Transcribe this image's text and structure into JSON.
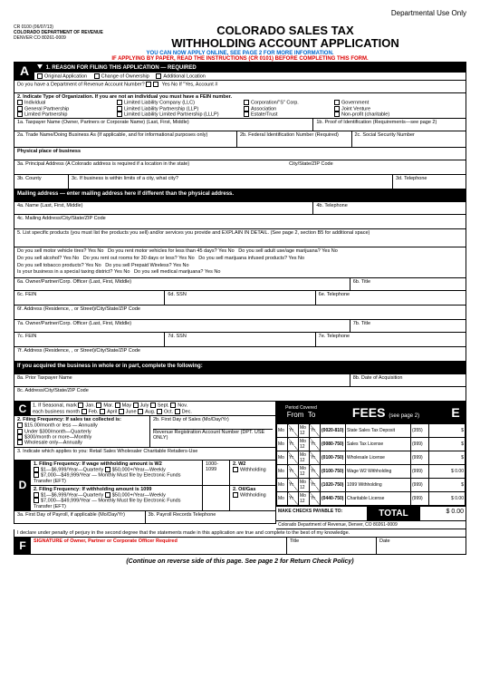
{
  "dept_use": "Departmental Use Only",
  "form_id": "CR 0100 (06/07/13)",
  "agency": "COLORADO DEPARTMENT OF REVENUE",
  "agency_addr": "DENVER CO 80261-0009",
  "title1": "COLORADO SALES TAX",
  "title2": "WITHHOLDING ACCOUNT APPLICATION",
  "instr1": "YOU CAN NOW APPLY ONLINE, SEE PAGE 2 FOR MORE INFORMATION.",
  "instr2": "IF APPLYING BY PAPER, READ THE INSTRUCTIONS (CR 0101) BEFORE COMPLETING THIS FORM.",
  "A": {
    "letter": "A",
    "h1": "1. REASON FOR FILING THIS APPLICATION — REQUIRED",
    "opts1": [
      "Original Application",
      "Change of Ownership",
      "Additional Location"
    ],
    "q1": "Do you have a Department of Revenue Account Number?",
    "q1opts": "Yes   No   If \"Yes, Account #",
    "h2": "2. Indicate Type of Organization. If you are not an individual you must have a FEIN number.",
    "org": [
      [
        "Individual",
        "Limited Liability Company (LLC)",
        "Corporation/\"S\" Corp.",
        "Government"
      ],
      [
        "General Partnership",
        "Limited Liability Partnership (LLP)",
        "Association",
        "Joint Venture"
      ],
      [
        "Limited Partnership",
        "Limited Liability Limited Partnership (LLLP)",
        "Estate/Trust",
        "Non-profit (charitable)"
      ]
    ],
    "r1a": "1a. Taxpayer Name (Owner, Partners or Corporate Name) (Last, First, Middle)",
    "r1b": "1b. Proof of Identification (Requirements—see page 2)",
    "r2a": "2a. Trade Name/Doing Business As (If applicable, and for informational purposes only)",
    "r2b": "2b. Federal Identification Number (Required)",
    "r2c": "2c. Social Security Number",
    "phys": "Physical place of business",
    "r3a": "3a. Principal Address (A Colorado address is required if a location in the state)",
    "csz": "City/State/ZIP Code",
    "r3b": "3b. County",
    "r3c": "3c. If business is within limits of a city, what city?",
    "r3d": "3d. Telephone",
    "mail": "Mailing address — enter mailing address here if different than the physical address.",
    "r4a": "4a. Name (Last, First, Middle)",
    "r4b": "4b. Telephone",
    "r4c": "4c. Mailing Address/City/State/ZIP Code",
    "r5": "5. List specific products (you must list the products you sell) and/or services you provide and EXPLAIN IN DETAIL. (See page 2, section B5 for additional space)",
    "q_tires": "Do you sell motor vehicle tires? Yes  No",
    "q_rent45": "Do you rent motor vehicles for less than 45 days? Yes  No",
    "q_adult": "Do you sell adult use/age marijuana?  Yes  No",
    "q_alcohol": "Do you sell alcohol? Yes  No",
    "q_rent30": "Do you rent out rooms for 30 days or less? Yes  No",
    "q_infused": "Do you sell marijuana infused products?  Yes  No",
    "q_tobacco": "Do you sell tobacco products? Yes  No",
    "q_wireless": "Do you sell Prepaid Wireless? Yes  No",
    "q_taxing": "Is your business in a special taxing district? Yes  No",
    "q_medmj": "Do you sell medical marijuana? Yes  No",
    "r6a": "6a. Owner/Partner/Corp. Officer (Last, First, Middle)",
    "r6b": "6b. Title",
    "r6c": "6c. FEIN",
    "r6d": "6d. SSN",
    "r6e": "6e. Telephone",
    "r6f": "6f. Address (Residence, , or Street)/City/State/ZIP Code",
    "r7a": "7a. Owner/Partner/Corp. Officer (Last, First, Middle)",
    "r7b": "7b. Title",
    "r7c": "7c. FEIN",
    "r7d": "7d. SSN",
    "r7e": "7e. Telephone",
    "r7f": "7f. Address (Residence, , or Street)/City/State/ZIP Code",
    "acq": "If you acquired the business in whole or in part, complete the following:",
    "r8a": "8a. Prior Taxpayer Name",
    "r8b": "8b. Date of Acquisition",
    "r8c": "8c. Address/City/State/ZIP Code"
  },
  "C": {
    "letter": "C",
    "r1": "1.    If Seasonal, mark",
    "months": [
      "Jan.",
      "Feb.",
      "Mar.",
      "April",
      "May",
      "June",
      "July",
      "Aug.",
      "Sept.",
      "Oct.",
      "Nov.",
      "Dec."
    ],
    "each": "each business month",
    "r2": "2. Filing Frequency: If sales tax collected is:",
    "r2b": "2b. First Day of Sales (Mo/Day/Yr)",
    "freq": [
      "$15.00/month or less — Annually",
      "Under $300/month—Quarterly",
      "$300/month or more—Monthly",
      "Wholesale only—Annually"
    ],
    "rra": "Revenue Registration Account Number (DPT. USE ONLY)",
    "r3": "3. Indicate which applies to you: Retail    Sales Wholesaler    Charitable Retailers-Use"
  },
  "D": {
    "letter": "D",
    "h1": "1. Filing Frequency: If wage withholding amount is W2",
    "f1": [
      "$1—$6,999/Year—Quarterly",
      "$50,000+/Year—Weekly",
      "$7,000—$49,999/Year — Monthly Must file by Electronic Funds Transfer (EFT)"
    ],
    "c1": "1000-",
    "w2": "2. W2",
    "wh": "Withholding",
    "h2": "2. Filing Frequency: If withholding amount is 1099",
    "og": "2. Oil/Gas",
    "r3a": "3a. First Day of Payroll, if applicable (Mo/Day/Yr)",
    "r3b": "3b. Payroll Records Telephone"
  },
  "fees": {
    "period": "Period Covered",
    "from": "From",
    "to": "To",
    "title": "FEES",
    "seepage": "(see page 2)",
    "E": "E",
    "rows": [
      {
        "code": "(0020-810)",
        "label": "State Sales Tax Deposit",
        "amt": "(355)",
        "val": "$"
      },
      {
        "code": "(0080-750)",
        "label": "Sales Tax License",
        "amt": "(999)",
        "val": "$"
      },
      {
        "code": "(0100-750)",
        "label": "Wholesale License",
        "amt": "(999)",
        "val": "$"
      },
      {
        "code": "(0100-750)",
        "label": "Wage W2 Withholding",
        "amt": "(999)",
        "val": "$         0.00"
      },
      {
        "code": "(1020-750)",
        "label": "1099 Withholding",
        "amt": "(999)",
        "val": "$"
      },
      {
        "code": "(0440-750)",
        "label": "Charitable License",
        "amt": "(999)",
        "val": "$         0.00"
      }
    ],
    "check": "MAKE CHECKS PAYABLE TO:",
    "total": "TOTAL",
    "totalval": "$          0.00",
    "addr": "Colorado Department of Revenue, Denver, CO  80261-0009",
    "mo": "Mo",
    "yr": "Yr",
    "day": "12"
  },
  "F": {
    "letter": "F",
    "perjury": "I declare under penalty of perjury in the second degree that the statements made in this application are true and complete to the best of my knowledge.",
    "sig": "SIGNATURE of Owner, Partner or Corporate Officer Required",
    "title": "Title",
    "date": "Date"
  },
  "footer": "(Continue on reverse side of this page. See page 2 for Return Check Policy)"
}
